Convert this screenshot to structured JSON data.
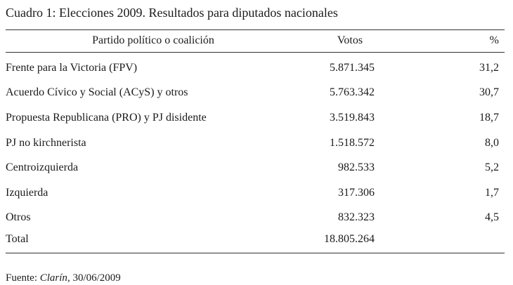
{
  "title": "Cuadro 1: Elecciones 2009. Resultados para diputados nacionales",
  "table": {
    "header": [
      "Partido político o coalición",
      "Votos",
      "%"
    ],
    "rows": [
      [
        "Frente para la Victoria (FPV)",
        "5.871.345",
        "31,2"
      ],
      [
        "Acuerdo Cívico y Social (ACyS) y otros",
        "5.763.342",
        "30,7"
      ],
      [
        "Propuesta Republicana (PRO) y PJ disidente",
        "3.519.843",
        "18,7"
      ],
      [
        "PJ no kirchnerista",
        "1.518.572",
        "8,0"
      ],
      [
        "Centroizquierda",
        "982.533",
        "5,2"
      ],
      [
        "Izquierda",
        "317.306",
        "1,7"
      ],
      [
        "Otros",
        "832.323",
        "4,5"
      ],
      [
        "Total",
        "18.805.264"
      ]
    ]
  },
  "source": {
    "prefix": "Fuente:",
    "publication": "Clarín",
    "date": ", 30/06/2009"
  }
}
